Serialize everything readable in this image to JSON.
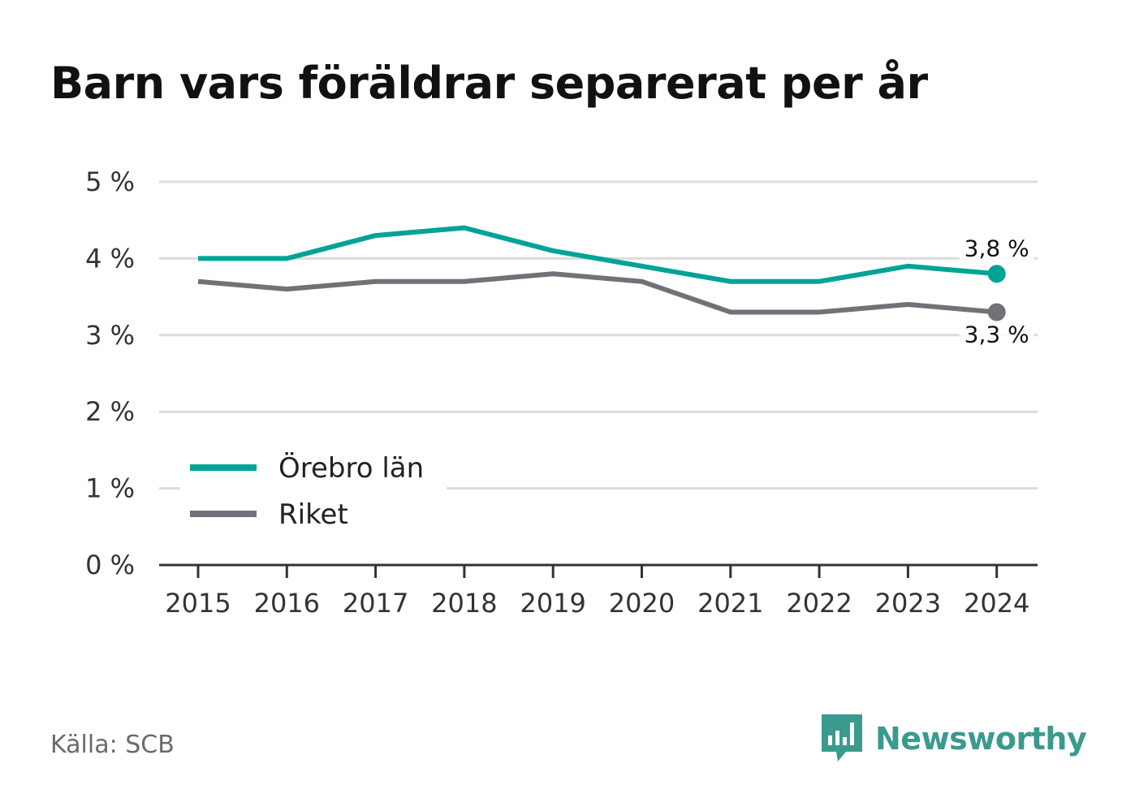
{
  "title": "Barn vars föräldrar separerat per år",
  "source": "Källa: SCB",
  "brand": "Newsworthy",
  "colors": {
    "orebro": "#00a396",
    "riket": "#727178",
    "grid": "#dcdcdc",
    "axis": "#333333"
  },
  "chart_data": {
    "type": "line",
    "title": "Barn vars föräldrar separerat per år",
    "x": [
      "2015",
      "2016",
      "2017",
      "2018",
      "2019",
      "2020",
      "2021",
      "2022",
      "2023",
      "2024"
    ],
    "ylim": [
      0,
      5
    ],
    "yticks": [
      "0 %",
      "1 %",
      "2 %",
      "3 %",
      "4 %",
      "5 %"
    ],
    "grid": true,
    "legend": "bottom-left",
    "series": [
      {
        "name": "Örebro län",
        "color": "#00a396",
        "values": [
          4.0,
          4.0,
          4.3,
          4.4,
          4.1,
          3.9,
          3.7,
          3.7,
          3.9,
          3.8
        ],
        "end_label": "3,8 %"
      },
      {
        "name": "Riket",
        "color": "#727178",
        "values": [
          3.7,
          3.6,
          3.7,
          3.7,
          3.8,
          3.7,
          3.3,
          3.3,
          3.4,
          3.3
        ],
        "end_label": "3,3 %"
      }
    ]
  }
}
